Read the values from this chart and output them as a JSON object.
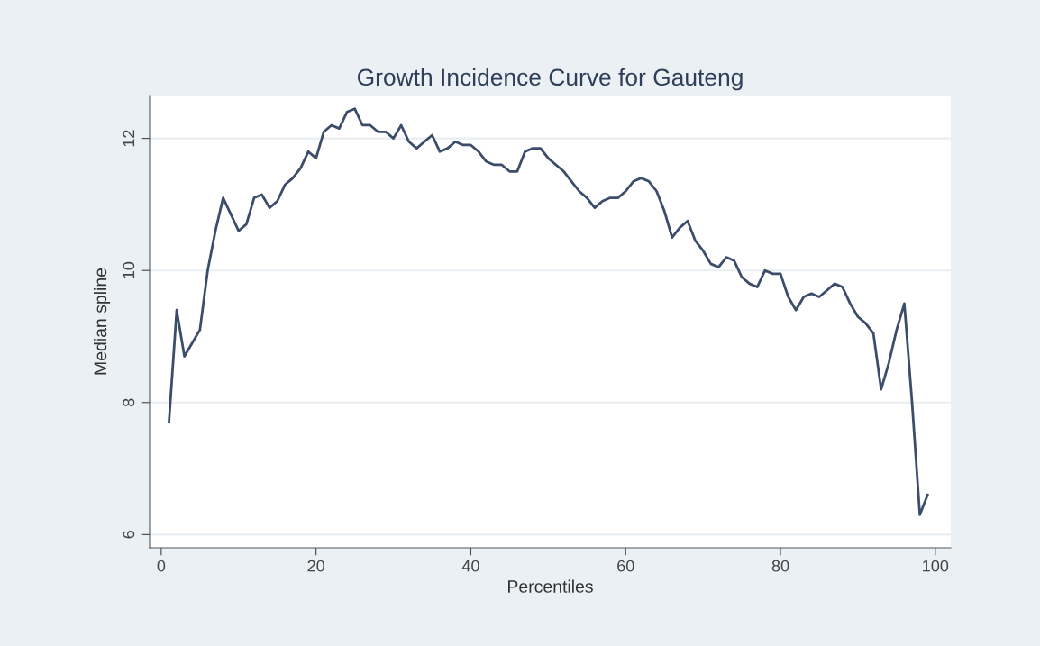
{
  "chart_data": {
    "type": "line",
    "title": "Growth Incidence Curve for Gauteng",
    "xlabel": "Percentiles",
    "ylabel": "Median spline",
    "x": [
      1,
      2,
      3,
      4,
      5,
      6,
      7,
      8,
      9,
      10,
      11,
      12,
      13,
      14,
      15,
      16,
      17,
      18,
      19,
      20,
      21,
      22,
      23,
      24,
      25,
      26,
      27,
      28,
      29,
      30,
      31,
      32,
      33,
      34,
      35,
      36,
      37,
      38,
      39,
      40,
      41,
      42,
      43,
      44,
      45,
      46,
      47,
      48,
      49,
      50,
      51,
      52,
      53,
      54,
      55,
      56,
      57,
      58,
      59,
      60,
      61,
      62,
      63,
      64,
      65,
      66,
      67,
      68,
      69,
      70,
      71,
      72,
      73,
      74,
      75,
      76,
      77,
      78,
      79,
      80,
      81,
      82,
      83,
      84,
      85,
      86,
      87,
      88,
      89,
      90,
      91,
      92,
      93,
      94,
      95,
      96,
      97,
      98,
      99
    ],
    "series": [
      {
        "color": "#3b4d6b",
        "values": [
          7.7,
          9.4,
          8.7,
          8.9,
          9.1,
          10.0,
          10.6,
          11.1,
          10.85,
          10.6,
          10.7,
          11.1,
          11.15,
          10.95,
          11.05,
          11.3,
          11.4,
          11.55,
          11.8,
          11.7,
          12.1,
          12.2,
          12.15,
          12.4,
          12.45,
          12.2,
          12.2,
          12.1,
          12.1,
          12.0,
          12.2,
          11.95,
          11.85,
          11.95,
          12.05,
          11.8,
          11.85,
          11.95,
          11.9,
          11.9,
          11.8,
          11.65,
          11.6,
          11.6,
          11.5,
          11.5,
          11.8,
          11.85,
          11.85,
          11.7,
          11.6,
          11.5,
          11.35,
          11.2,
          11.1,
          10.95,
          11.05,
          11.1,
          11.1,
          11.2,
          11.35,
          11.4,
          11.35,
          11.2,
          10.9,
          10.5,
          10.65,
          10.75,
          10.45,
          10.3,
          10.1,
          10.05,
          10.2,
          10.15,
          9.9,
          9.8,
          9.75,
          10.0,
          9.95,
          9.95,
          9.6,
          9.4,
          9.6,
          9.65,
          9.6,
          9.7,
          9.8,
          9.75,
          9.5,
          9.3,
          9.2,
          9.05,
          8.2,
          8.6,
          9.1,
          9.5,
          8.0,
          6.3,
          6.6
        ]
      }
    ],
    "xlim": [
      -1.5,
      102
    ],
    "ylim": [
      5.8,
      12.65
    ],
    "xticks": [
      0,
      20,
      40,
      60,
      80,
      100
    ],
    "yticks": [
      6,
      8,
      10,
      12
    ],
    "grid": "y",
    "marker": "none",
    "line_style": "solid"
  }
}
